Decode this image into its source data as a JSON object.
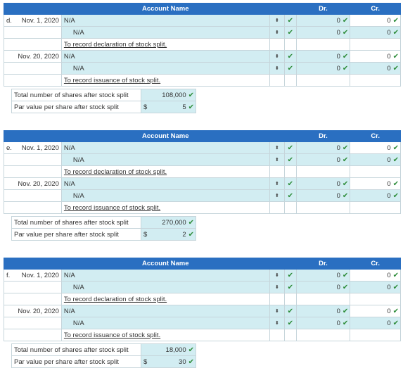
{
  "headers": {
    "account_name": "Account Name",
    "dr": "Dr.",
    "cr": "Cr."
  },
  "check_icon": "✔",
  "arrow_icon": "⬍",
  "blocks": [
    {
      "letter": "d.",
      "rows": [
        {
          "date": "Nov. 1, 2020",
          "account": "N/A",
          "dr": "0",
          "cr": "0"
        },
        {
          "date": "",
          "account": "N/A",
          "dr": "0",
          "cr": "0"
        },
        {
          "note": "To record declaration of stock split."
        },
        {
          "date": "Nov. 20, 2020",
          "account": "N/A",
          "dr": "0",
          "cr": "0"
        },
        {
          "date": "",
          "account": "N/A",
          "dr": "0",
          "cr": "0"
        },
        {
          "note": "To record issuance of stock split."
        }
      ],
      "shares_label": "Total number of shares after stock split",
      "shares_value": "108,000",
      "par_label": "Par value per share after stock split",
      "par_currency": "$",
      "par_value": "5"
    },
    {
      "letter": "e.",
      "rows": [
        {
          "date": "Nov. 1, 2020",
          "account": "N/A",
          "dr": "0",
          "cr": "0"
        },
        {
          "date": "",
          "account": "N/A",
          "dr": "0",
          "cr": "0"
        },
        {
          "note": "To record declaration of stock split."
        },
        {
          "date": "Nov. 20, 2020",
          "account": "N/A",
          "dr": "0",
          "cr": "0"
        },
        {
          "date": "",
          "account": "N/A",
          "dr": "0",
          "cr": "0"
        },
        {
          "note": "To record issuance of stock split."
        }
      ],
      "shares_label": "Total number of shares after stock split",
      "shares_value": "270,000",
      "par_label": "Par value per share after stock split",
      "par_currency": "$",
      "par_value": "2"
    },
    {
      "letter": "f.",
      "rows": [
        {
          "date": "Nov. 1, 2020",
          "account": "N/A",
          "dr": "0",
          "cr": "0"
        },
        {
          "date": "",
          "account": "N/A",
          "dr": "0",
          "cr": "0"
        },
        {
          "note": "To record declaration of stock split."
        },
        {
          "date": "Nov. 20, 2020",
          "account": "N/A",
          "dr": "0",
          "cr": "0"
        },
        {
          "date": "",
          "account": "N/A",
          "dr": "0",
          "cr": "0"
        },
        {
          "note": "To record issuance of stock split."
        }
      ],
      "shares_label": "Total number of shares after stock split",
      "shares_value": "18,000",
      "par_label": "Par value per share after stock split",
      "par_currency": "$",
      "par_value": "30"
    }
  ]
}
